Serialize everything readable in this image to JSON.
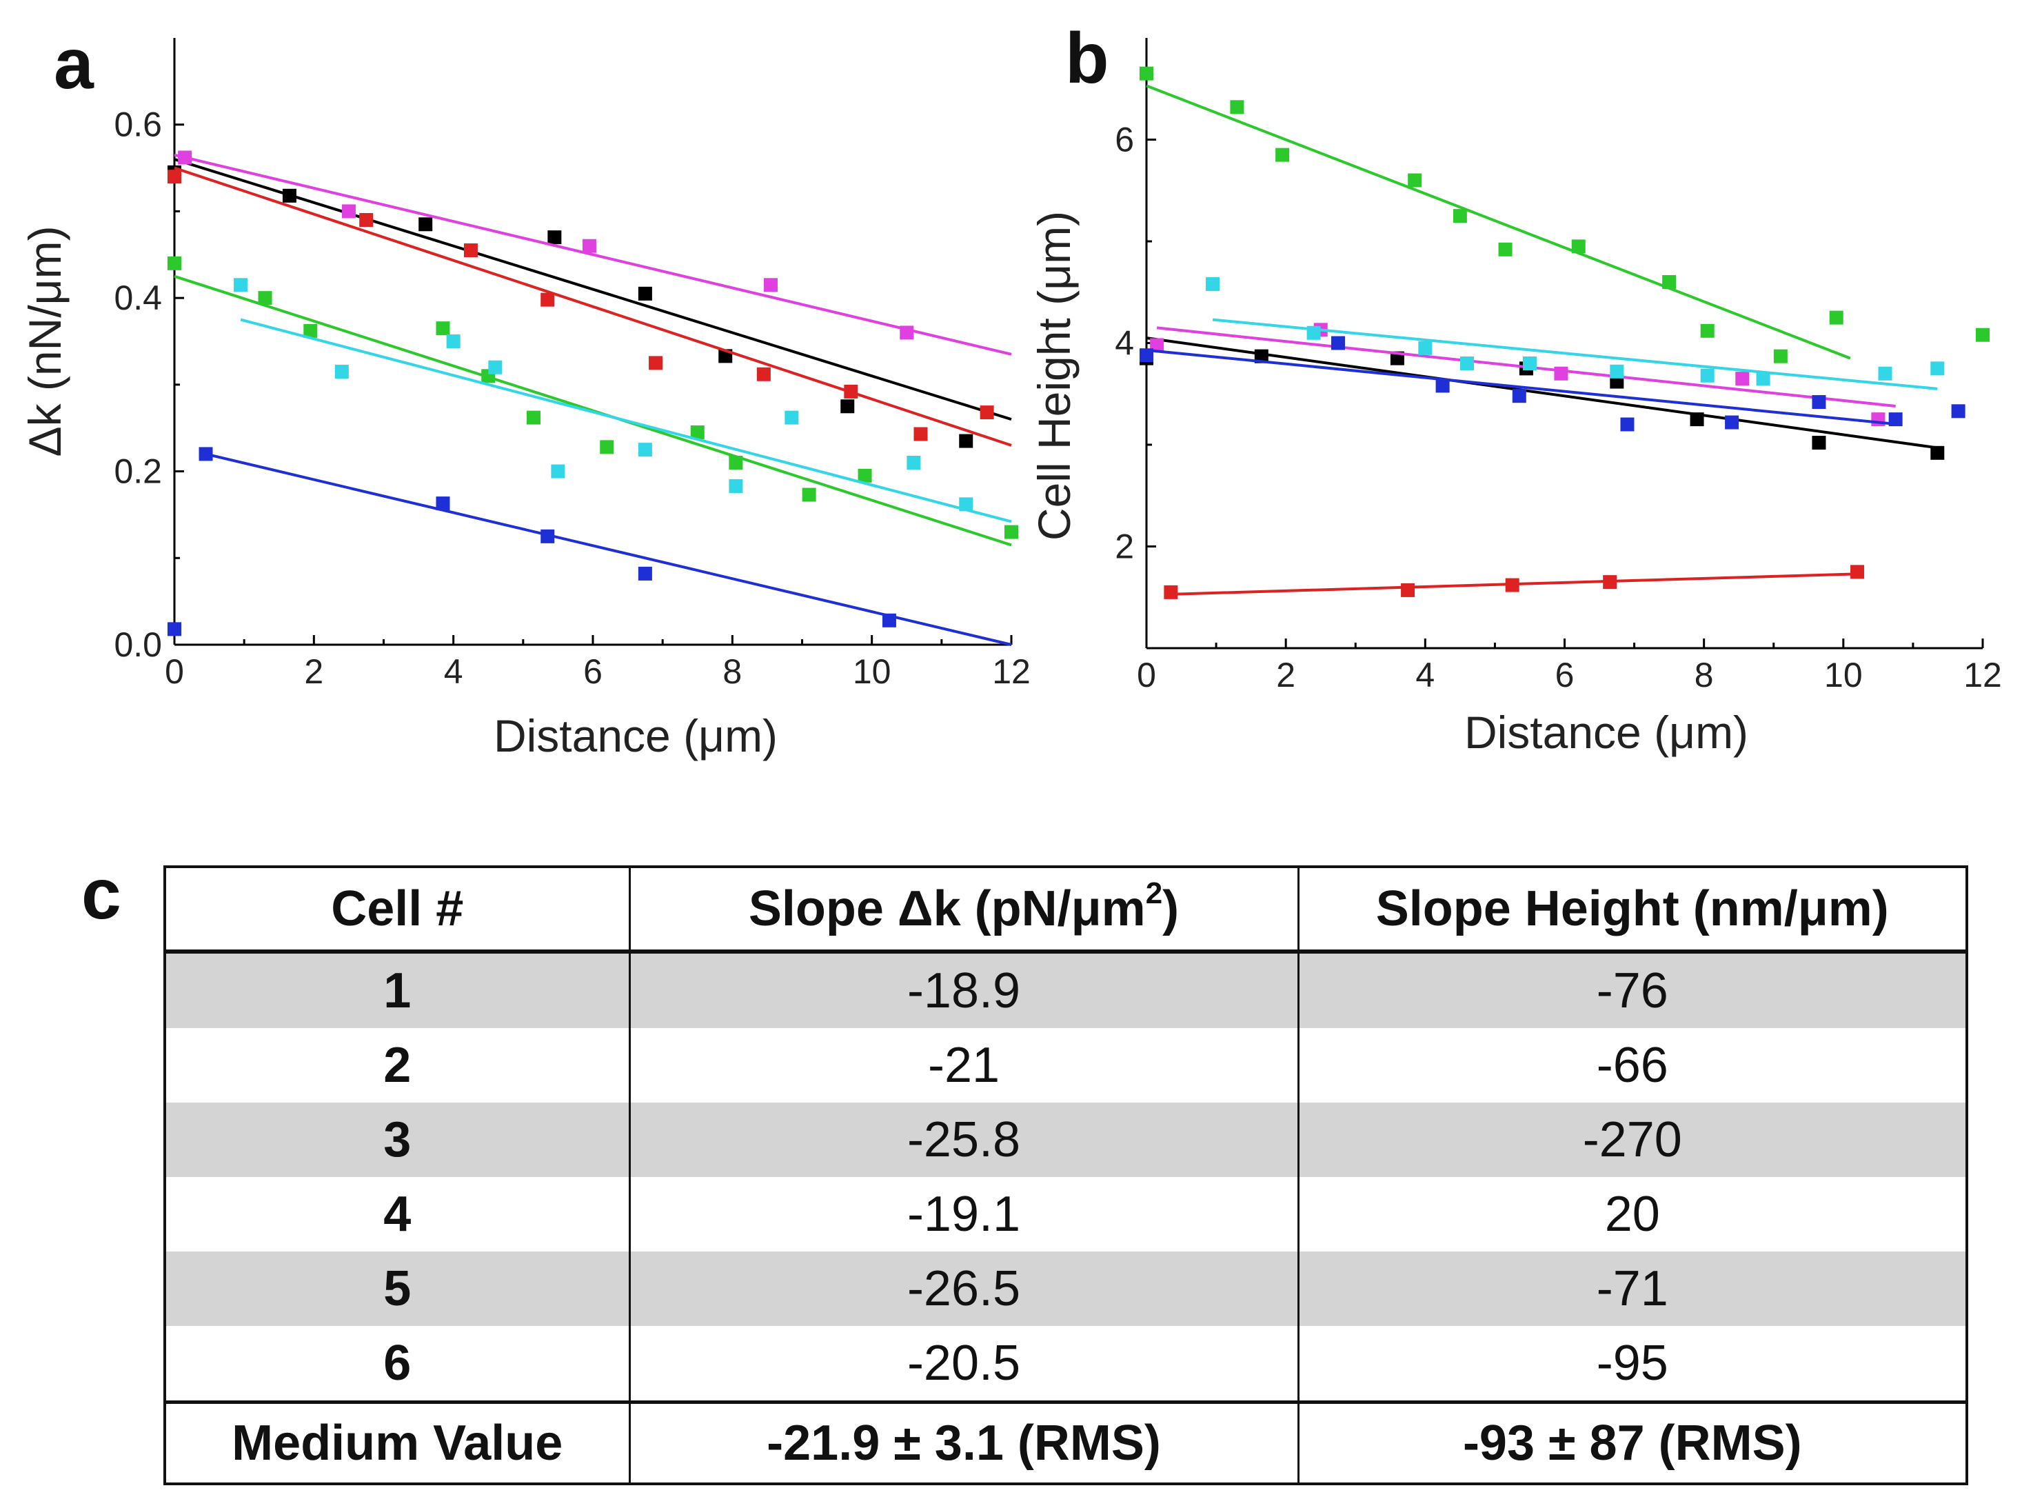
{
  "chart_data": [
    {
      "panel": "a",
      "type": "scatter",
      "xlabel": "Distance (μm)",
      "ylabel": "Δk (nN/μm)",
      "xlim": [
        0,
        12
      ],
      "ylim": [
        0,
        0.7
      ],
      "xticks": [
        "0",
        "2",
        "4",
        "6",
        "8",
        "10",
        "12"
      ],
      "yticks": [
        "0.0",
        "0.2",
        "0.4",
        "0.6"
      ],
      "ytick_values": [
        0,
        0.2,
        0.4,
        0.6
      ],
      "grid": false,
      "series": [
        {
          "color": "#000000",
          "points": [
            [
              0,
              0.545
            ],
            [
              1.65,
              0.518
            ],
            [
              3.6,
              0.485
            ],
            [
              5.45,
              0.47
            ],
            [
              6.75,
              0.405
            ],
            [
              7.9,
              0.333
            ],
            [
              9.65,
              0.275
            ],
            [
              11.35,
              0.235
            ]
          ],
          "fit": [
            [
              0,
              0.56
            ],
            [
              12,
              0.26
            ]
          ]
        },
        {
          "color": "#dd2222",
          "points": [
            [
              0,
              0.54
            ],
            [
              2.75,
              0.49
            ],
            [
              4.25,
              0.455
            ],
            [
              5.35,
              0.398
            ],
            [
              6.9,
              0.325
            ],
            [
              8.45,
              0.312
            ],
            [
              9.7,
              0.292
            ],
            [
              10.7,
              0.243
            ],
            [
              11.65,
              0.268
            ]
          ],
          "fit": [
            [
              0,
              0.55
            ],
            [
              12,
              0.23
            ]
          ]
        },
        {
          "color": "#e040e0",
          "points": [
            [
              0.15,
              0.562
            ],
            [
              2.5,
              0.5
            ],
            [
              5.95,
              0.46
            ],
            [
              8.55,
              0.415
            ],
            [
              10.5,
              0.36
            ]
          ],
          "fit": [
            [
              0,
              0.565
            ],
            [
              12,
              0.335
            ]
          ]
        },
        {
          "color": "#2bc92b",
          "points": [
            [
              0,
              0.44
            ],
            [
              1.3,
              0.4
            ],
            [
              1.95,
              0.362
            ],
            [
              3.85,
              0.365
            ],
            [
              4.5,
              0.31
            ],
            [
              5.15,
              0.262
            ],
            [
              6.2,
              0.228
            ],
            [
              7.5,
              0.245
            ],
            [
              8.05,
              0.21
            ],
            [
              9.1,
              0.173
            ],
            [
              9.9,
              0.195
            ],
            [
              12,
              0.13
            ]
          ],
          "fit": [
            [
              0,
              0.425
            ],
            [
              12,
              0.115
            ]
          ]
        },
        {
          "color": "#33d6e6",
          "points": [
            [
              0.95,
              0.415
            ],
            [
              2.4,
              0.315
            ],
            [
              4.0,
              0.35
            ],
            [
              4.6,
              0.32
            ],
            [
              5.5,
              0.2
            ],
            [
              6.75,
              0.225
            ],
            [
              8.05,
              0.183
            ],
            [
              8.85,
              0.262
            ],
            [
              10.6,
              0.21
            ],
            [
              11.35,
              0.162
            ]
          ],
          "fit": [
            [
              0.95,
              0.375
            ],
            [
              12,
              0.142
            ]
          ]
        },
        {
          "color": "#1f2fd6",
          "points": [
            [
              0,
              0.018
            ],
            [
              0.45,
              0.22
            ],
            [
              3.85,
              0.163
            ],
            [
              5.35,
              0.125
            ],
            [
              6.75,
              0.082
            ],
            [
              10.25,
              0.028
            ]
          ],
          "fit": [
            [
              0.45,
              0.22
            ],
            [
              12,
              0.0
            ]
          ]
        }
      ]
    },
    {
      "panel": "b",
      "type": "scatter",
      "xlabel": "Distance (μm)",
      "ylabel": "Cell Height (μm)",
      "xlim": [
        0,
        12
      ],
      "ylim": [
        1,
        7
      ],
      "xticks": [
        "0",
        "2",
        "4",
        "6",
        "8",
        "10",
        "12"
      ],
      "yticks": [
        "2",
        "4",
        "6"
      ],
      "ytick_values": [
        2,
        4,
        6
      ],
      "grid": false,
      "series": [
        {
          "color": "#000000",
          "points": [
            [
              0,
              3.85
            ],
            [
              1.65,
              3.87
            ],
            [
              3.6,
              3.85
            ],
            [
              5.45,
              3.75
            ],
            [
              6.75,
              3.62
            ],
            [
              7.9,
              3.25
            ],
            [
              9.65,
              3.02
            ],
            [
              11.35,
              2.92
            ]
          ],
          "fit": [
            [
              0,
              4.05
            ],
            [
              11.35,
              2.97
            ]
          ]
        },
        {
          "color": "#dd2222",
          "points": [
            [
              0.35,
              1.55
            ],
            [
              3.75,
              1.57
            ],
            [
              5.25,
              1.62
            ],
            [
              6.65,
              1.65
            ],
            [
              10.2,
              1.75
            ]
          ],
          "fit": [
            [
              0.35,
              1.53
            ],
            [
              10.2,
              1.73
            ]
          ]
        },
        {
          "color": "#e040e0",
          "points": [
            [
              0.15,
              3.98
            ],
            [
              2.5,
              4.13
            ],
            [
              5.95,
              3.7
            ],
            [
              8.55,
              3.65
            ],
            [
              10.5,
              3.25
            ]
          ],
          "fit": [
            [
              0.15,
              4.15
            ],
            [
              10.75,
              3.38
            ]
          ]
        },
        {
          "color": "#2bc92b",
          "points": [
            [
              0,
              6.65
            ],
            [
              1.3,
              6.32
            ],
            [
              1.95,
              5.85
            ],
            [
              3.85,
              5.6
            ],
            [
              4.5,
              5.25
            ],
            [
              5.15,
              4.92
            ],
            [
              6.2,
              4.95
            ],
            [
              7.5,
              4.6
            ],
            [
              8.05,
              4.12
            ],
            [
              9.1,
              3.87
            ],
            [
              9.9,
              4.25
            ],
            [
              12,
              4.08
            ]
          ],
          "fit": [
            [
              0,
              6.53
            ],
            [
              10.1,
              3.85
            ]
          ]
        },
        {
          "color": "#33d6e6",
          "points": [
            [
              0.95,
              4.58
            ],
            [
              2.4,
              4.1
            ],
            [
              4.0,
              3.95
            ],
            [
              4.6,
              3.8
            ],
            [
              5.5,
              3.8
            ],
            [
              6.75,
              3.72
            ],
            [
              8.05,
              3.68
            ],
            [
              8.85,
              3.65
            ],
            [
              10.6,
              3.7
            ],
            [
              11.35,
              3.75
            ]
          ],
          "fit": [
            [
              0.95,
              4.23
            ],
            [
              11.35,
              3.55
            ]
          ]
        },
        {
          "color": "#1f2fd6",
          "points": [
            [
              0,
              3.88
            ],
            [
              2.75,
              4.0
            ],
            [
              4.25,
              3.58
            ],
            [
              5.35,
              3.48
            ],
            [
              6.9,
              3.2
            ],
            [
              8.4,
              3.22
            ],
            [
              9.65,
              3.42
            ],
            [
              10.75,
              3.25
            ],
            [
              11.65,
              3.33
            ]
          ],
          "fit": [
            [
              0,
              3.93
            ],
            [
              10.8,
              3.2
            ]
          ]
        }
      ]
    },
    {
      "panel": "c",
      "type": "table",
      "columns": [
        "Cell #",
        "Slope Δk (pN/μm",
        "Slope Height (nm/μm)"
      ],
      "superscript": "2",
      "rows": [
        {
          "cell": "1",
          "slope_dk": "-18.9",
          "slope_height": "-76"
        },
        {
          "cell": "2",
          "slope_dk": "-21",
          "slope_height": "-66"
        },
        {
          "cell": "3",
          "slope_dk": "-25.8",
          "slope_height": "-270"
        },
        {
          "cell": "4",
          "slope_dk": "-19.1",
          "slope_height": "20"
        },
        {
          "cell": "5",
          "slope_dk": "-26.5",
          "slope_height": "-71"
        },
        {
          "cell": "6",
          "slope_dk": "-20.5",
          "slope_height": "-95"
        }
      ],
      "summary": {
        "label": "Medium Value",
        "slope_dk": "-21.9 ± 3.1 (RMS)",
        "slope_height": "-93 ± 87 (RMS)"
      }
    }
  ],
  "panel_letters": {
    "a": "a",
    "b": "b",
    "c": "c"
  },
  "table_close_paren": ")"
}
